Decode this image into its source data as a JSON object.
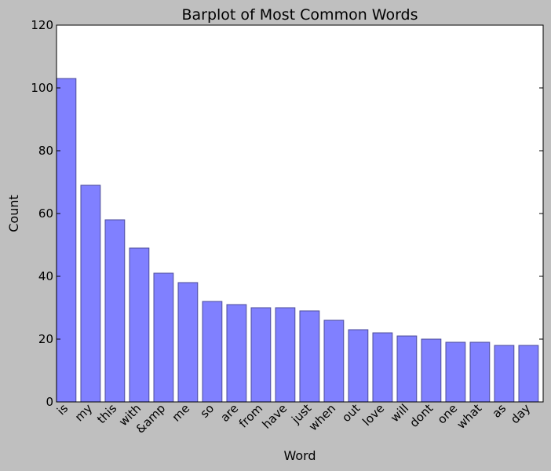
{
  "chart_data": {
    "type": "bar",
    "title": "Barplot of Most Common Words",
    "xlabel": "Word",
    "ylabel": "Count",
    "ylim": [
      0,
      120
    ],
    "yticks": [
      0,
      20,
      40,
      60,
      80,
      100,
      120
    ],
    "categories": [
      "is",
      "my",
      "this",
      "with",
      "&amp",
      "me",
      "so",
      "are",
      "from",
      "have",
      "just",
      "when",
      "out",
      "love",
      "will",
      "dont",
      "one",
      "what",
      "as",
      "day"
    ],
    "values": [
      103,
      69,
      58,
      49,
      41,
      38,
      32,
      31,
      30,
      30,
      29,
      26,
      23,
      22,
      21,
      20,
      19,
      19,
      18,
      18
    ],
    "grid": false,
    "colors": {
      "bar_fill": "#8080ff",
      "bar_edge": "#4d4d99",
      "plot_background": "#ffffff",
      "figure_background": "#bfbfbf"
    }
  }
}
